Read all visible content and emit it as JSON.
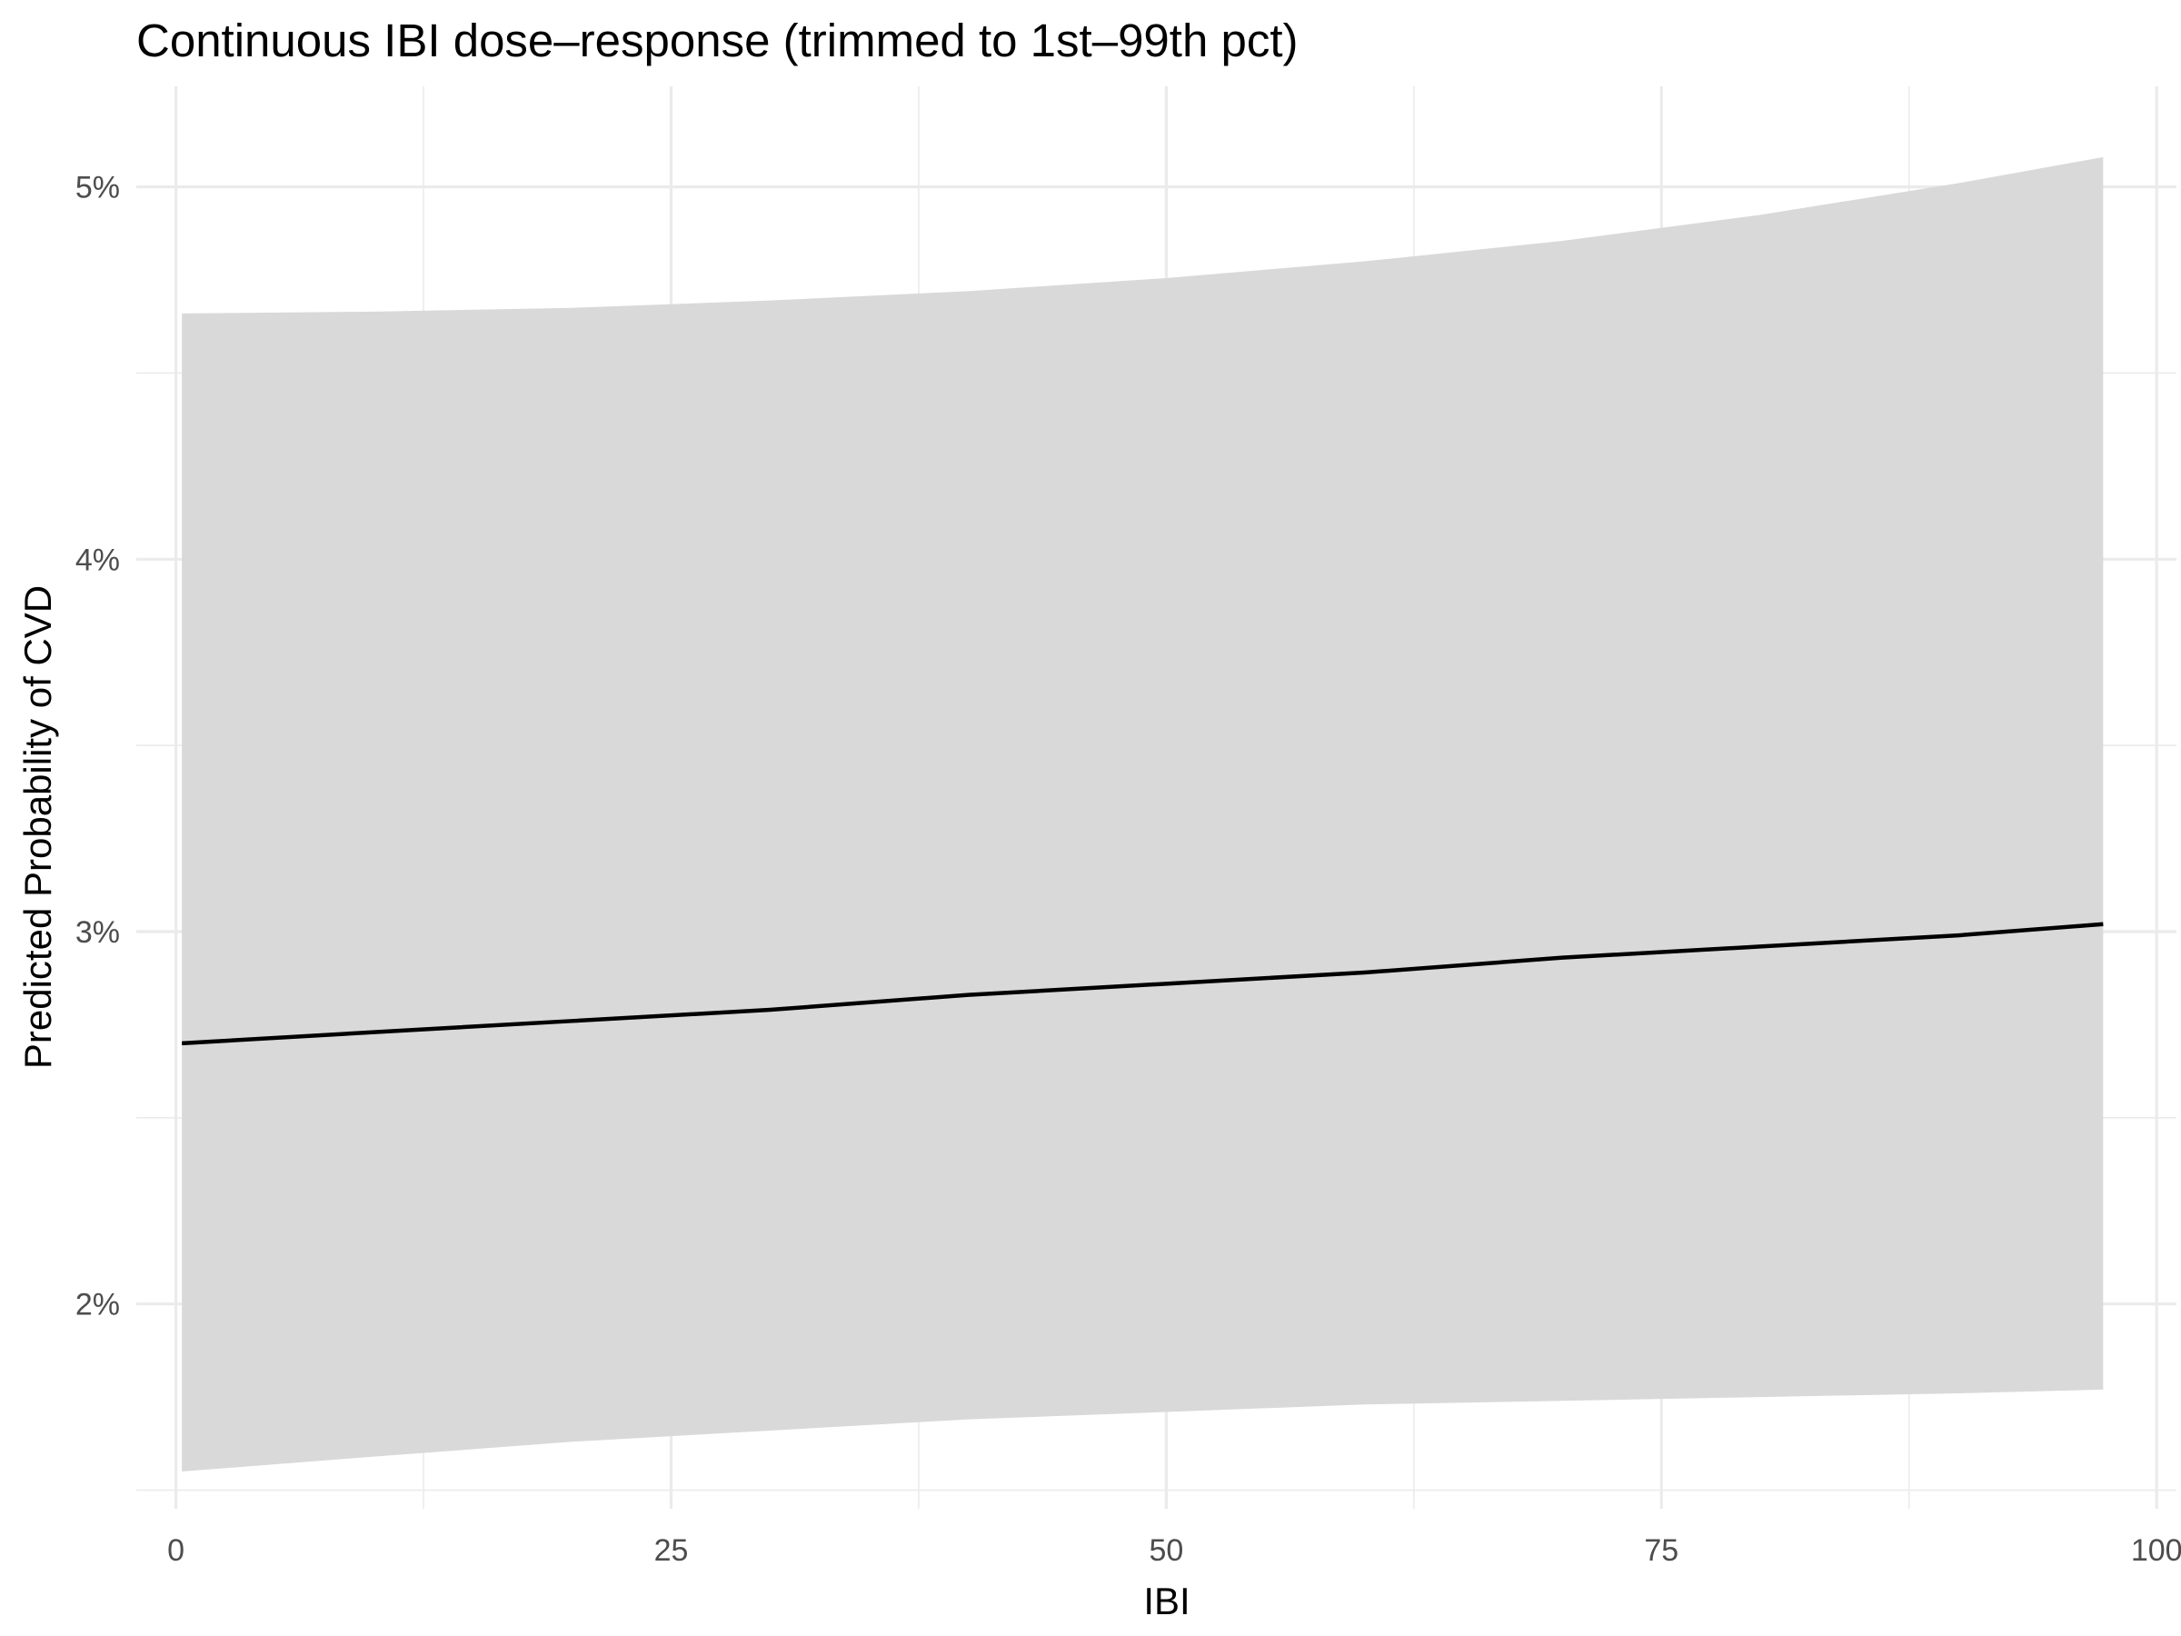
{
  "chart_data": {
    "type": "line",
    "title": "Continuous IBI dose–response (trimmed to 1st–99th pct)",
    "xlabel": "IBI",
    "ylabel": "Predicted Probability of CVD",
    "xlim": [
      -2,
      101
    ],
    "ylim": [
      1.45,
      5.27
    ],
    "x_ticks": [
      0,
      25,
      50,
      75,
      100
    ],
    "x_tick_labels": [
      "0",
      "25",
      "50",
      "75",
      "100"
    ],
    "y_ticks": [
      2,
      3,
      4,
      5
    ],
    "y_tick_labels": [
      "2%",
      "3%",
      "4%",
      "5%"
    ],
    "y_unit": "percent",
    "grid": true,
    "colors": {
      "line": "#000000",
      "ribbon": "#d9d9d9",
      "grid": "#ebebeb",
      "background": "#ffffff"
    },
    "series": [
      {
        "x": [
          0.3,
          10,
          20,
          30,
          40,
          50,
          60,
          70,
          80,
          90,
          97.3
        ],
        "y": [
          2.7,
          2.73,
          2.76,
          2.79,
          2.83,
          2.86,
          2.89,
          2.93,
          2.96,
          2.99,
          3.02
        ],
        "lower": [
          1.55,
          1.59,
          1.63,
          1.66,
          1.69,
          1.71,
          1.73,
          1.74,
          1.75,
          1.76,
          1.77
        ],
        "upper": [
          4.66,
          4.665,
          4.675,
          4.695,
          4.72,
          4.755,
          4.8,
          4.855,
          4.925,
          5.01,
          5.08
        ]
      }
    ]
  }
}
